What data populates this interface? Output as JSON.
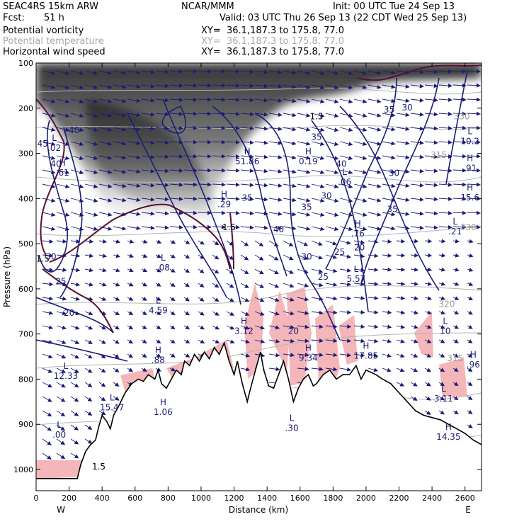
{
  "header": {
    "model": "SEAC4RS 15km ARW",
    "center": "NCAR/MMM",
    "init": "Init: 00 UTC Tue 24 Sep 13",
    "fcst_label": "Fcst:",
    "fcst_value": "51 h",
    "valid": "Valid: 03 UTC Thu 26 Sep 13 (22 CDT Wed 25 Sep 13)"
  },
  "legend": [
    {
      "field": "Potential vorticity",
      "xy": "XY=  36.1,187.3 to 175.8, 77.0",
      "color": "#000000"
    },
    {
      "field": "Potential temperature",
      "xy": "XY=  36.1,187.3 to 175.8, 77.0",
      "color": "#a8a8a8"
    },
    {
      "field": "Horizontal wind speed",
      "xy": "XY=  36.1,187.3 to 175.8, 77.0",
      "color": "#000000"
    }
  ],
  "colors": {
    "wind_contour": "#1c1c78",
    "theta_contour": "#b4b4b4",
    "pv_shading": "#3a3a3a",
    "pink_fill": "#f4b6b8",
    "terrain": "#000000",
    "pv_contour": "#5a1030"
  },
  "chart_data": {
    "type": "cross-section",
    "xlabel": "Distance (km)",
    "ylabel": "Pressure (hPa)",
    "x_ticks": [
      0,
      200,
      400,
      600,
      800,
      1000,
      1200,
      1400,
      1600,
      1800,
      2000,
      2200,
      2400,
      2600
    ],
    "y_ticks": [
      100,
      200,
      300,
      400,
      500,
      600,
      700,
      800,
      900,
      1000
    ],
    "xlim": [
      0,
      2700
    ],
    "ylim": [
      1050,
      100
    ],
    "x_end_labels": [
      "W",
      "E"
    ],
    "terrain_profile": [
      [
        0,
        1020
      ],
      [
        120,
        1020
      ],
      [
        250,
        1020
      ],
      [
        270,
        990
      ],
      [
        300,
        960
      ],
      [
        330,
        945
      ],
      [
        360,
        935
      ],
      [
        380,
        905
      ],
      [
        400,
        880
      ],
      [
        430,
        895
      ],
      [
        450,
        910
      ],
      [
        470,
        880
      ],
      [
        500,
        860
      ],
      [
        540,
        830
      ],
      [
        580,
        810
      ],
      [
        620,
        800
      ],
      [
        650,
        805
      ],
      [
        680,
        790
      ],
      [
        720,
        800
      ],
      [
        740,
        780
      ],
      [
        760,
        810
      ],
      [
        790,
        820
      ],
      [
        820,
        800
      ],
      [
        850,
        780
      ],
      [
        880,
        790
      ],
      [
        900,
        760
      ],
      [
        930,
        770
      ],
      [
        960,
        745
      ],
      [
        990,
        760
      ],
      [
        1020,
        740
      ],
      [
        1050,
        755
      ],
      [
        1080,
        730
      ],
      [
        1110,
        745
      ],
      [
        1140,
        720
      ],
      [
        1170,
        760
      ],
      [
        1200,
        790
      ],
      [
        1220,
        760
      ],
      [
        1250,
        810
      ],
      [
        1280,
        850
      ],
      [
        1300,
        820
      ],
      [
        1330,
        780
      ],
      [
        1360,
        740
      ],
      [
        1380,
        780
      ],
      [
        1410,
        815
      ],
      [
        1440,
        820
      ],
      [
        1460,
        800
      ],
      [
        1480,
        780
      ],
      [
        1500,
        760
      ],
      [
        1530,
        800
      ],
      [
        1560,
        850
      ],
      [
        1590,
        820
      ],
      [
        1620,
        800
      ],
      [
        1650,
        790
      ],
      [
        1680,
        815
      ],
      [
        1700,
        810
      ],
      [
        1740,
        790
      ],
      [
        1780,
        780
      ],
      [
        1820,
        800
      ],
      [
        1860,
        790
      ],
      [
        1900,
        790
      ],
      [
        1940,
        770
      ],
      [
        1970,
        800
      ],
      [
        2000,
        780
      ],
      [
        2030,
        785
      ],
      [
        2060,
        790
      ],
      [
        2100,
        800
      ],
      [
        2150,
        810
      ],
      [
        2200,
        830
      ],
      [
        2250,
        850
      ],
      [
        2300,
        870
      ],
      [
        2350,
        880
      ],
      [
        2400,
        885
      ],
      [
        2450,
        890
      ],
      [
        2500,
        900
      ],
      [
        2550,
        910
      ],
      [
        2600,
        920
      ],
      [
        2650,
        935
      ],
      [
        2700,
        945
      ]
    ],
    "wind_speed_contour_labels": [
      {
        "x": 120,
        "p": 330,
        "text": "40"
      },
      {
        "x": 230,
        "p": 255,
        "text": "40"
      },
      {
        "x": 90,
        "p": 535,
        "text": "30"
      },
      {
        "x": 150,
        "p": 590,
        "text": "25"
      },
      {
        "x": 200,
        "p": 660,
        "text": "20"
      },
      {
        "x": 1280,
        "p": 405,
        "text": "35"
      },
      {
        "x": 1470,
        "p": 475,
        "text": "40"
      },
      {
        "x": 1640,
        "p": 425,
        "text": "35"
      },
      {
        "x": 1760,
        "p": 400,
        "text": "30"
      },
      {
        "x": 1640,
        "p": 535,
        "text": "30"
      },
      {
        "x": 1840,
        "p": 525,
        "text": "25"
      },
      {
        "x": 1740,
        "p": 580,
        "text": "25"
      },
      {
        "x": 1960,
        "p": 515,
        "text": "20"
      },
      {
        "x": 1560,
        "p": 700,
        "text": "20"
      },
      {
        "x": 1700,
        "p": 270,
        "text": "35"
      },
      {
        "x": 1850,
        "p": 330,
        "text": "40"
      },
      {
        "x": 2140,
        "p": 210,
        "text": "35"
      },
      {
        "x": 2170,
        "p": 350,
        "text": "30"
      },
      {
        "x": 2250,
        "p": 205,
        "text": "30"
      },
      {
        "x": 2160,
        "p": 430,
        "text": "35"
      },
      {
        "x": 40,
        "p": 285,
        "text": "45"
      }
    ],
    "theta_contour_labels": [
      {
        "x": 2580,
        "p": 225,
        "text": "330"
      },
      {
        "x": 2440,
        "p": 310,
        "text": "315"
      },
      {
        "x": 2620,
        "p": 470,
        "text": "330"
      },
      {
        "x": 2490,
        "p": 640,
        "text": "320"
      },
      {
        "x": 2540,
        "p": 760,
        "text": "315"
      }
    ],
    "high_low_markers": [
      {
        "x": 160,
        "p": 340,
        "sym": "H",
        "value": ".61"
      },
      {
        "x": 110,
        "p": 285,
        "sym": "L",
        "value": ".02"
      },
      {
        "x": 770,
        "p": 550,
        "sym": "L",
        "value": ".08"
      },
      {
        "x": 740,
        "p": 645,
        "sym": "L",
        "value": "4.59"
      },
      {
        "x": 740,
        "p": 755,
        "sym": "H",
        "value": ".88"
      },
      {
        "x": 180,
        "p": 790,
        "sym": "L",
        "value": "12.33"
      },
      {
        "x": 140,
        "p": 920,
        "sym": "L",
        "value": ".00"
      },
      {
        "x": 460,
        "p": 860,
        "sym": "L",
        "value": "15.47"
      },
      {
        "x": 770,
        "p": 870,
        "sym": "H",
        "value": "1.06"
      },
      {
        "x": 1260,
        "p": 690,
        "sym": "H",
        "value": "3.12"
      },
      {
        "x": 1140,
        "p": 410,
        "sym": "H",
        "value": ".29"
      },
      {
        "x": 1280,
        "p": 315,
        "sym": "H",
        "value": "51.86"
      },
      {
        "x": 1650,
        "p": 315,
        "sym": "H",
        "value": "0.19"
      },
      {
        "x": 1550,
        "p": 905,
        "sym": "L",
        "value": ".30"
      },
      {
        "x": 1650,
        "p": 750,
        "sym": "H",
        "value": "9.34"
      },
      {
        "x": 1950,
        "p": 475,
        "sym": "H",
        "value": ".76"
      },
      {
        "x": 1940,
        "p": 575,
        "sym": "L",
        "value": "5.57"
      },
      {
        "x": 2000,
        "p": 745,
        "sym": "H",
        "value": "17.85"
      },
      {
        "x": 1870,
        "p": 360,
        "sym": "L",
        "value": ".06"
      },
      {
        "x": 2630,
        "p": 270,
        "sym": "L",
        "value": "10.2"
      },
      {
        "x": 2630,
        "p": 330,
        "sym": "H",
        "value": ".91"
      },
      {
        "x": 2630,
        "p": 395,
        "sym": "H",
        "value": "15.6"
      },
      {
        "x": 2540,
        "p": 470,
        "sym": "L",
        "value": ".21"
      },
      {
        "x": 2480,
        "p": 690,
        "sym": "L",
        "value": "10"
      },
      {
        "x": 2650,
        "p": 765,
        "sym": "H",
        "value": ".96"
      },
      {
        "x": 2500,
        "p": 925,
        "sym": "H",
        "value": "14.35"
      },
      {
        "x": 2470,
        "p": 840,
        "sym": "L",
        "value": "3.11"
      }
    ],
    "pv_contour_labels": [
      {
        "x": 1170,
        "p": 470,
        "text": "1.5"
      },
      {
        "x": 40,
        "p": 540,
        "text": "1.5"
      },
      {
        "x": 380,
        "p": 1000,
        "text": "1.5"
      },
      {
        "x": 1700,
        "p": 225,
        "text": "1.5"
      }
    ]
  }
}
